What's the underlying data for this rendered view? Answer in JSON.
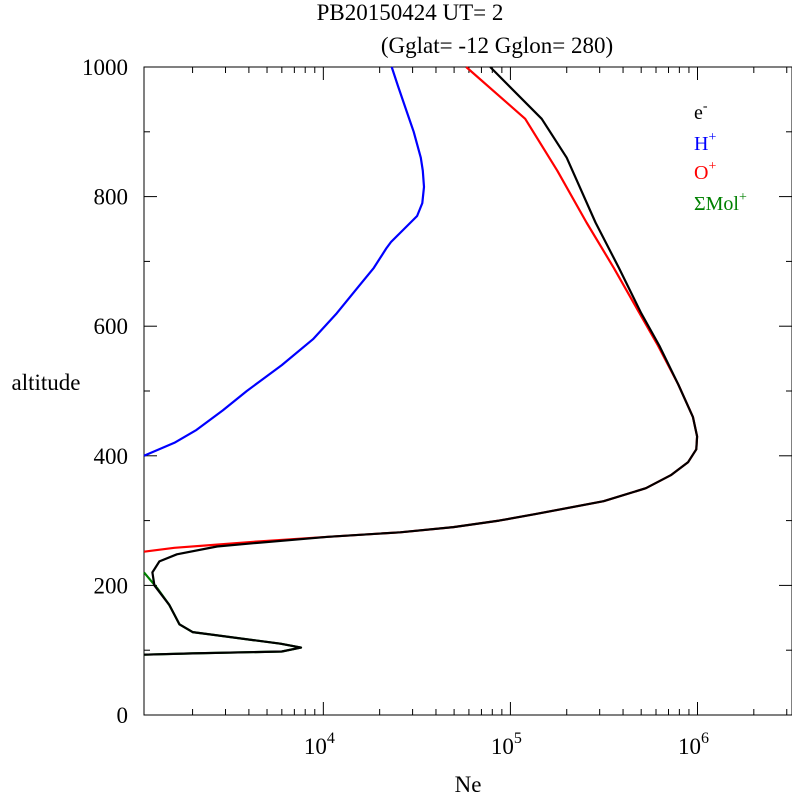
{
  "title": {
    "line1": "PB20150424   UT=  2",
    "line2": "(Gglat= -12   Gglon=  280)"
  },
  "chart_data": {
    "type": "line",
    "xlabel": "Ne",
    "ylabel": "altitude",
    "xscale": "log",
    "xlim": [
      1100,
      3200000
    ],
    "ylim": [
      0,
      1000
    ],
    "yticks": [
      0,
      200,
      400,
      600,
      800,
      1000
    ],
    "xticks": [
      {
        "value": 10000,
        "base": "10",
        "exp": "4"
      },
      {
        "value": 100000,
        "base": "10",
        "exp": "5"
      },
      {
        "value": 1000000,
        "base": "10",
        "exp": "6"
      }
    ],
    "legend_position": "top-right",
    "grid": false,
    "series": [
      {
        "name": "H+",
        "legend_base": "H",
        "legend_sup": "+",
        "color": "#0000ff",
        "points": [
          [
            1100,
            400
          ],
          [
            1600,
            420
          ],
          [
            2100,
            440
          ],
          [
            2900,
            470
          ],
          [
            3900,
            500
          ],
          [
            6000,
            540
          ],
          [
            8800,
            580
          ],
          [
            11800,
            620
          ],
          [
            15300,
            660
          ],
          [
            18600,
            690
          ],
          [
            21700,
            720
          ],
          [
            23000,
            730
          ],
          [
            31700,
            770
          ],
          [
            33800,
            790
          ],
          [
            34500,
            815
          ],
          [
            34000,
            840
          ],
          [
            33200,
            860
          ],
          [
            30400,
            900
          ],
          [
            28000,
            930
          ],
          [
            25100,
            970
          ],
          [
            23200,
            1000
          ]
        ]
      },
      {
        "name": "O+",
        "legend_base": "O",
        "legend_sup": "+",
        "color": "#ff0000",
        "points": [
          [
            1100,
            252
          ],
          [
            1600,
            258
          ],
          [
            2700,
            263
          ],
          [
            4600,
            268
          ],
          [
            10600,
            275
          ],
          [
            25800,
            282
          ],
          [
            49600,
            290
          ],
          [
            87000,
            300
          ],
          [
            136000,
            310
          ],
          [
            315000,
            330
          ],
          [
            530000,
            350
          ],
          [
            720000,
            370
          ],
          [
            890000,
            390
          ],
          [
            985000,
            410
          ],
          [
            995000,
            430
          ],
          [
            945000,
            460
          ],
          [
            790000,
            510
          ],
          [
            615000,
            570
          ],
          [
            490000,
            620
          ],
          [
            357000,
            690
          ],
          [
            255000,
            760
          ],
          [
            178000,
            840
          ],
          [
            120000,
            920
          ],
          [
            58000,
            1000
          ]
        ]
      },
      {
        "name": "ΣMol+",
        "legend_base": "ΣMol",
        "legend_sup": "+",
        "color": "#008000",
        "points": [
          [
            1100,
            220
          ],
          [
            1300,
            195
          ],
          [
            1500,
            170
          ],
          [
            1600,
            155
          ],
          [
            1700,
            140
          ],
          [
            2000,
            128
          ],
          [
            5900,
            110
          ],
          [
            7600,
            104
          ],
          [
            6000,
            98
          ],
          [
            2000,
            95
          ],
          [
            1100,
            93
          ]
        ]
      },
      {
        "name": "e-",
        "legend_base": "e",
        "legend_sup": "-",
        "color": "#000000",
        "points": [
          [
            1100,
            93
          ],
          [
            2000,
            95
          ],
          [
            6000,
            98
          ],
          [
            7600,
            104
          ],
          [
            5900,
            110
          ],
          [
            2000,
            128
          ],
          [
            1700,
            140
          ],
          [
            1500,
            170
          ],
          [
            1250,
            200
          ],
          [
            1220,
            220
          ],
          [
            1330,
            237
          ],
          [
            1650,
            248
          ],
          [
            2700,
            260
          ],
          [
            4600,
            266
          ],
          [
            10600,
            275
          ],
          [
            25800,
            282
          ],
          [
            49600,
            290
          ],
          [
            87000,
            300
          ],
          [
            136000,
            310
          ],
          [
            315000,
            330
          ],
          [
            530000,
            350
          ],
          [
            720000,
            370
          ],
          [
            890000,
            390
          ],
          [
            985000,
            410
          ],
          [
            995000,
            430
          ],
          [
            945000,
            460
          ],
          [
            790000,
            510
          ],
          [
            625000,
            570
          ],
          [
            500000,
            620
          ],
          [
            380000,
            690
          ],
          [
            285000,
            760
          ],
          [
            200000,
            860
          ],
          [
            147000,
            920
          ],
          [
            78000,
            1000
          ]
        ]
      }
    ]
  }
}
